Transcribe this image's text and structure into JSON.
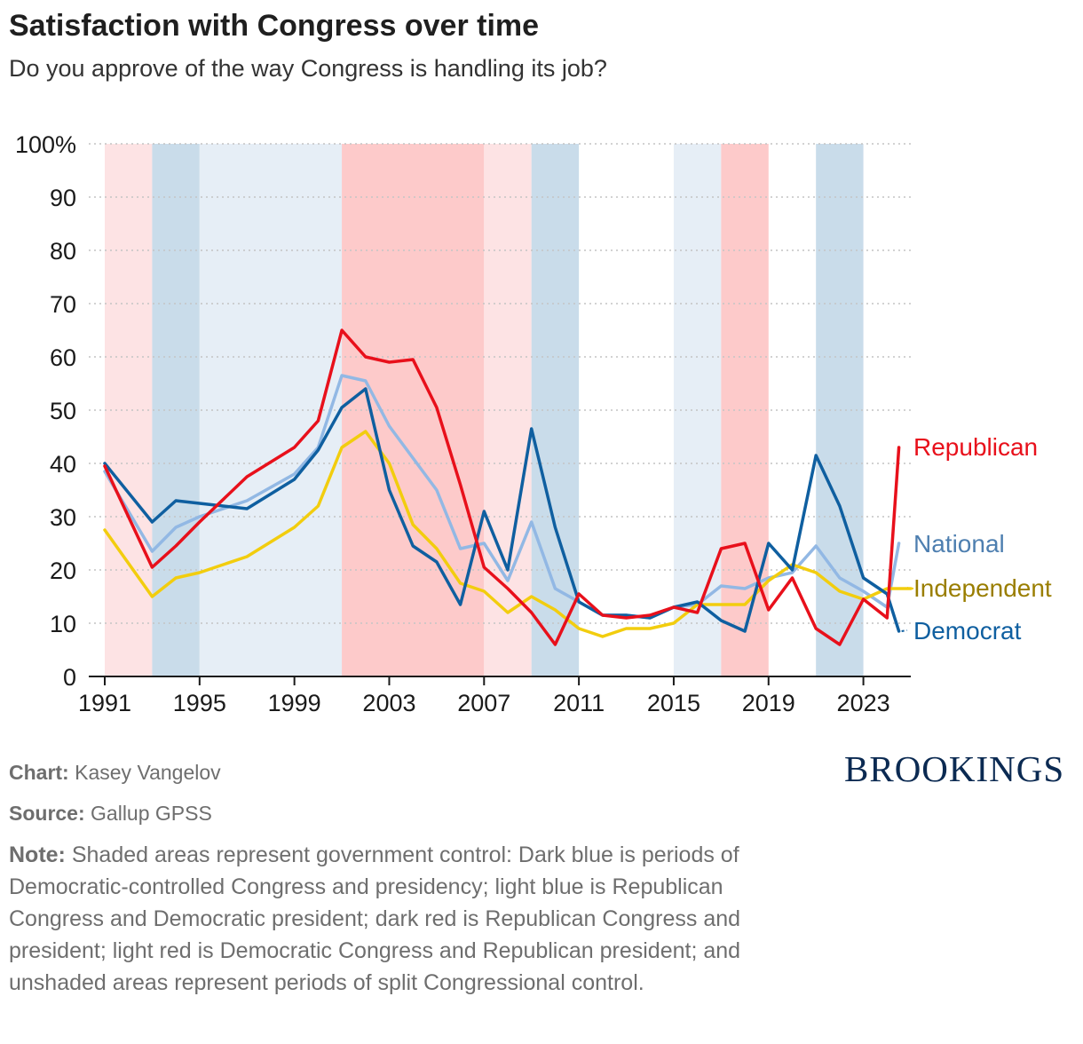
{
  "header": {
    "title": "Satisfaction with Congress over time",
    "subtitle": "Do you approve of the way Congress is handling its job?"
  },
  "chart_data": {
    "type": "line",
    "xlim": [
      1991,
      2025
    ],
    "ylim": [
      0,
      100
    ],
    "x_ticks": [
      1991,
      1995,
      1999,
      2003,
      2007,
      2011,
      2015,
      2019,
      2023
    ],
    "y_ticks": [
      0,
      10,
      20,
      30,
      40,
      50,
      60,
      70,
      80,
      90,
      100
    ],
    "y_tick_labels": [
      "0",
      "10",
      "20",
      "30",
      "40",
      "50",
      "60",
      "70",
      "80",
      "90",
      "100%"
    ],
    "grid": "horizontal dotted",
    "legend": "direct labels at right",
    "shaded_periods": [
      {
        "start": 1991,
        "end": 1993,
        "type": "light-red",
        "color": "#fde3e4"
      },
      {
        "start": 1993,
        "end": 1995,
        "type": "dark-blue",
        "color": "#c9dcea"
      },
      {
        "start": 1995,
        "end": 2001,
        "type": "light-blue",
        "color": "#e6eef6"
      },
      {
        "start": 2001,
        "end": 2007,
        "type": "dark-red",
        "color": "#fdcaca"
      },
      {
        "start": 2007,
        "end": 2009,
        "type": "light-red",
        "color": "#fde3e4"
      },
      {
        "start": 2009,
        "end": 2011,
        "type": "dark-blue",
        "color": "#c9dcea"
      },
      {
        "start": 2015,
        "end": 2017,
        "type": "light-blue",
        "color": "#e6eef6"
      },
      {
        "start": 2017,
        "end": 2019,
        "type": "dark-red",
        "color": "#fdcaca"
      },
      {
        "start": 2021,
        "end": 2023,
        "type": "dark-blue",
        "color": "#c9dcea"
      }
    ],
    "series": [
      {
        "name": "National",
        "color": "#92b8e4",
        "label_color": "#4e7fb0",
        "points": [
          [
            1991,
            38.5
          ],
          [
            1993,
            23.5
          ],
          [
            1994,
            28
          ],
          [
            1995,
            30
          ],
          [
            1997,
            33
          ],
          [
            1999,
            38
          ],
          [
            2000,
            43
          ],
          [
            2001,
            56.5
          ],
          [
            2002,
            55.5
          ],
          [
            2003,
            47
          ],
          [
            2004,
            41
          ],
          [
            2005,
            35
          ],
          [
            2006,
            24
          ],
          [
            2007,
            25
          ],
          [
            2008,
            18
          ],
          [
            2009,
            29
          ],
          [
            2010,
            16.5
          ],
          [
            2011,
            14
          ],
          [
            2012,
            11.5
          ],
          [
            2013,
            11.5
          ],
          [
            2014,
            11
          ],
          [
            2015,
            13
          ],
          [
            2016,
            13.5
          ],
          [
            2017,
            17
          ],
          [
            2018,
            16.5
          ],
          [
            2019,
            18.5
          ],
          [
            2020,
            19.5
          ],
          [
            2021,
            24.5
          ],
          [
            2022,
            18.5
          ],
          [
            2023,
            16
          ],
          [
            2024,
            13
          ],
          [
            2024.5,
            25
          ]
        ]
      },
      {
        "name": "Independent",
        "color": "#f2cd0e",
        "label_color": "#9a7e00",
        "points": [
          [
            1991,
            27.5
          ],
          [
            1993,
            15
          ],
          [
            1994,
            18.5
          ],
          [
            1995,
            19.5
          ],
          [
            1997,
            22.5
          ],
          [
            1999,
            28
          ],
          [
            2000,
            32
          ],
          [
            2001,
            43
          ],
          [
            2002,
            46
          ],
          [
            2003,
            40
          ],
          [
            2004,
            28.5
          ],
          [
            2005,
            24
          ],
          [
            2006,
            17.5
          ],
          [
            2007,
            16
          ],
          [
            2008,
            12
          ],
          [
            2009,
            15
          ],
          [
            2010,
            12.5
          ],
          [
            2011,
            9
          ],
          [
            2012,
            7.5
          ],
          [
            2013,
            9
          ],
          [
            2014,
            9
          ],
          [
            2015,
            10
          ],
          [
            2016,
            13.5
          ],
          [
            2017,
            13.5
          ],
          [
            2018,
            13.5
          ],
          [
            2019,
            18
          ],
          [
            2020,
            21
          ],
          [
            2021,
            19.5
          ],
          [
            2022,
            16
          ],
          [
            2023,
            14.5
          ],
          [
            2024,
            16.5
          ],
          [
            2025,
            16.5
          ]
        ]
      },
      {
        "name": "Democrat",
        "color": "#0f5fa0",
        "label_color": "#0f5fa0",
        "points": [
          [
            1991,
            40
          ],
          [
            1993,
            29
          ],
          [
            1994,
            33
          ],
          [
            1995,
            32.5
          ],
          [
            1997,
            31.5
          ],
          [
            1999,
            37
          ],
          [
            2000,
            42.5
          ],
          [
            2001,
            50.5
          ],
          [
            2002,
            54
          ],
          [
            2003,
            35
          ],
          [
            2004,
            24.5
          ],
          [
            2005,
            21.5
          ],
          [
            2006,
            13.5
          ],
          [
            2007,
            31
          ],
          [
            2008,
            20
          ],
          [
            2009,
            46.5
          ],
          [
            2010,
            28
          ],
          [
            2011,
            14
          ],
          [
            2012,
            11.5
          ],
          [
            2013,
            11.5
          ],
          [
            2014,
            11
          ],
          [
            2015,
            13
          ],
          [
            2016,
            14
          ],
          [
            2017,
            10.5
          ],
          [
            2018,
            8.5
          ],
          [
            2019,
            25
          ],
          [
            2020,
            20
          ],
          [
            2021,
            41.5
          ],
          [
            2022,
            32
          ],
          [
            2023,
            18.5
          ],
          [
            2024,
            15.5
          ],
          [
            2024.5,
            8.5
          ]
        ]
      },
      {
        "name": "Republican",
        "color": "#e8101b",
        "label_color": "#e8101b",
        "points": [
          [
            1991,
            39.5
          ],
          [
            1993,
            20.5
          ],
          [
            1994,
            24.5
          ],
          [
            1995,
            29
          ],
          [
            1997,
            37.5
          ],
          [
            1999,
            43
          ],
          [
            2000,
            48
          ],
          [
            2001,
            65
          ],
          [
            2002,
            60
          ],
          [
            2003,
            59
          ],
          [
            2004,
            59.5
          ],
          [
            2005,
            50.5
          ],
          [
            2006,
            36
          ],
          [
            2007,
            20.5
          ],
          [
            2008,
            16.5
          ],
          [
            2009,
            12
          ],
          [
            2010,
            6
          ],
          [
            2011,
            15.5
          ],
          [
            2012,
            11.5
          ],
          [
            2013,
            11
          ],
          [
            2014,
            11.5
          ],
          [
            2015,
            13
          ],
          [
            2016,
            12
          ],
          [
            2017,
            24
          ],
          [
            2018,
            25
          ],
          [
            2019,
            12.5
          ],
          [
            2020,
            18.5
          ],
          [
            2021,
            9
          ],
          [
            2022,
            6
          ],
          [
            2023,
            14.5
          ],
          [
            2024,
            11
          ],
          [
            2024.5,
            43
          ]
        ]
      }
    ]
  },
  "footer": {
    "chart_label": "Chart:",
    "chart_value": "Kasey Vangelov",
    "source_label": "Source:",
    "source_value": "Gallup GPSS",
    "note_label": "Note:",
    "note_text": "Shaded areas represent government control: Dark blue is periods of Democratic-controlled Congress and presidency; light blue is Republican Congress and Democratic president; dark red is Republican Congress and president; light red is Democratic Congress and Republican president; and unshaded areas represent periods of split Congressional control.",
    "logo": "BROOKINGS"
  }
}
